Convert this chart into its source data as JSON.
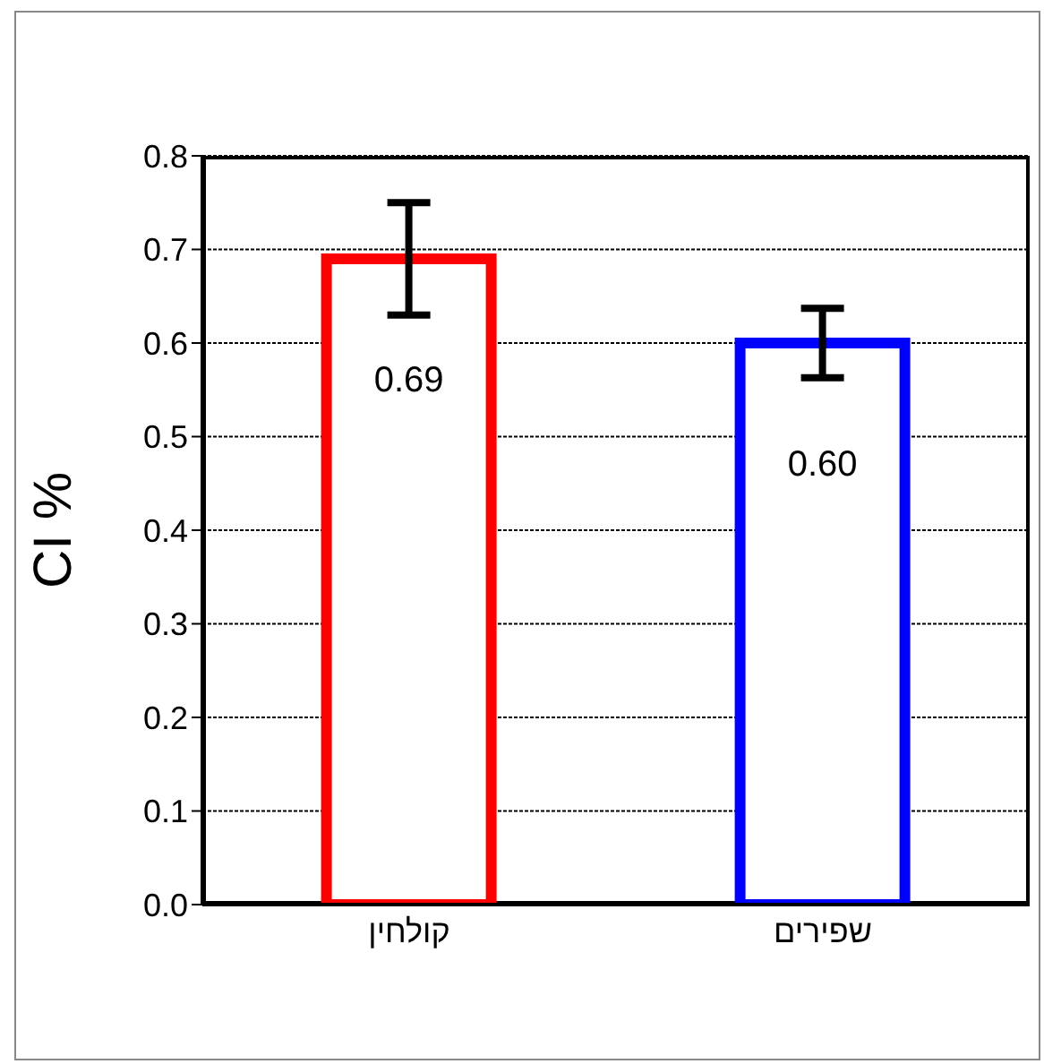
{
  "chart_data": {
    "type": "bar",
    "ylabel": "CI %",
    "categories": [
      "קולחין",
      "שפירים"
    ],
    "values": [
      0.69,
      0.6
    ],
    "colors": [
      "#ff0000",
      "#0000ff"
    ],
    "value_labels": [
      "0.69",
      "0.60"
    ],
    "errors": [
      0.06,
      0.037
    ],
    "ylim": [
      0,
      0.8
    ],
    "yticks": [
      {
        "value": 0,
        "label": "0.0"
      },
      0.1,
      0.2,
      0.3,
      0.4,
      0.5,
      0.6,
      0.7,
      0.8
    ],
    "grid": "y"
  }
}
